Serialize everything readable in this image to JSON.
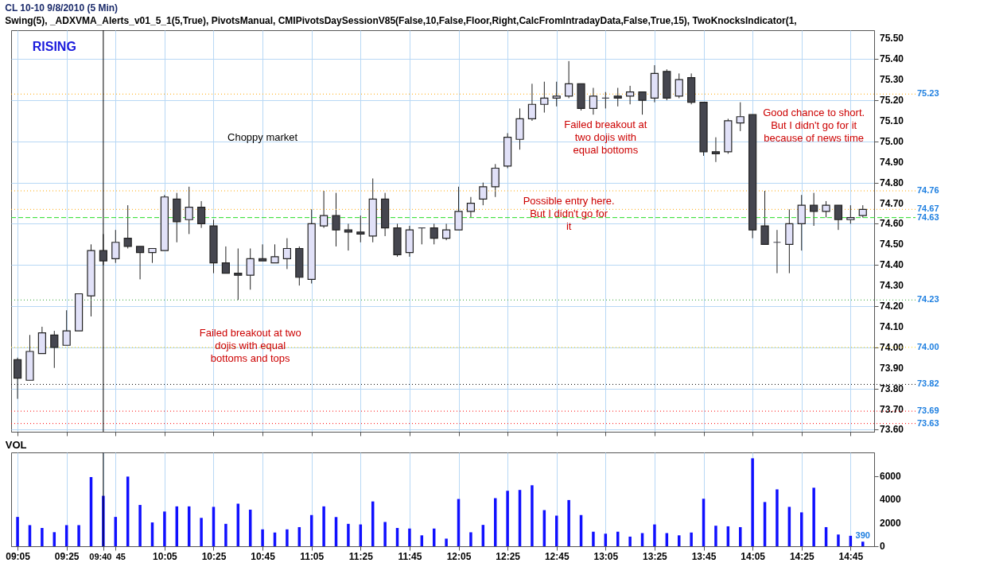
{
  "chart_data": [
    {
      "type": "candlestick",
      "title": "CL 10-10  9/8/2010 (5 Min)",
      "subtitle": "Swing(5),  _ADXVMA_Alerts_v01_5_1(5,True),  PivotsManual,  CMIPivotsDaySessionV85(False,10,False,Floor,Right,CalcFromIntradayData,False,True,15),  TwoKnocksIndicator(1,",
      "x": [
        "2010-09-08T09:05",
        "2010-09-08T09:10",
        "2010-09-08T09:15",
        "2010-09-08T09:20",
        "2010-09-08T09:25",
        "2010-09-08T09:30",
        "2010-09-08T09:35",
        "2010-09-08T09:40",
        "2010-09-08T09:45",
        "2010-09-08T09:50",
        "2010-09-08T09:55",
        "2010-09-08T10:00",
        "2010-09-08T10:05",
        "2010-09-08T10:10",
        "2010-09-08T10:15",
        "2010-09-08T10:20",
        "2010-09-08T10:25",
        "2010-09-08T10:30",
        "2010-09-08T10:35",
        "2010-09-08T10:40",
        "2010-09-08T10:45",
        "2010-09-08T10:50",
        "2010-09-08T10:55",
        "2010-09-08T11:00",
        "2010-09-08T11:05",
        "2010-09-08T11:10",
        "2010-09-08T11:15",
        "2010-09-08T11:20",
        "2010-09-08T11:25",
        "2010-09-08T11:30",
        "2010-09-08T11:35",
        "2010-09-08T11:40",
        "2010-09-08T11:45",
        "2010-09-08T11:50",
        "2010-09-08T11:55",
        "2010-09-08T12:00",
        "2010-09-08T12:05",
        "2010-09-08T12:10",
        "2010-09-08T12:15",
        "2010-09-08T12:20",
        "2010-09-08T12:25",
        "2010-09-08T12:30",
        "2010-09-08T12:35",
        "2010-09-08T12:40",
        "2010-09-08T12:45",
        "2010-09-08T12:50",
        "2010-09-08T12:55",
        "2010-09-08T13:00",
        "2010-09-08T13:05",
        "2010-09-08T13:10",
        "2010-09-08T13:15",
        "2010-09-08T13:20",
        "2010-09-08T13:25",
        "2010-09-08T13:30",
        "2010-09-08T13:35",
        "2010-09-08T13:40",
        "2010-09-08T13:45",
        "2010-09-08T13:50",
        "2010-09-08T13:55",
        "2010-09-08T14:00",
        "2010-09-08T14:05",
        "2010-09-08T14:10",
        "2010-09-08T14:15",
        "2010-09-08T14:20",
        "2010-09-08T14:25",
        "2010-09-08T14:30",
        "2010-09-08T14:35",
        "2010-09-08T14:40",
        "2010-09-08T14:45",
        "2010-09-08T14:50"
      ],
      "ohlc": [
        [
          73.94,
          73.95,
          73.75,
          73.85
        ],
        [
          73.84,
          74.06,
          73.84,
          73.98
        ],
        [
          73.97,
          74.1,
          73.97,
          74.07
        ],
        [
          74.06,
          74.08,
          73.9,
          74.0
        ],
        [
          74.01,
          74.18,
          74.01,
          74.08
        ],
        [
          74.08,
          74.26,
          74.08,
          74.26
        ],
        [
          74.25,
          74.5,
          74.15,
          74.47
        ],
        [
          74.47,
          74.55,
          74.4,
          74.42
        ],
        [
          74.43,
          74.57,
          74.41,
          74.51
        ],
        [
          74.53,
          74.69,
          74.48,
          74.49
        ],
        [
          74.49,
          74.49,
          74.33,
          74.46
        ],
        [
          74.46,
          74.48,
          74.41,
          74.48
        ],
        [
          74.47,
          74.74,
          74.47,
          74.73
        ],
        [
          74.72,
          74.75,
          74.51,
          74.61
        ],
        [
          74.62,
          74.78,
          74.55,
          74.68
        ],
        [
          74.68,
          74.71,
          74.58,
          74.6
        ],
        [
          74.59,
          74.62,
          74.36,
          74.41
        ],
        [
          74.41,
          74.49,
          74.36,
          74.36
        ],
        [
          74.36,
          74.48,
          74.23,
          74.35
        ],
        [
          74.35,
          74.48,
          74.28,
          74.43
        ],
        [
          74.43,
          74.5,
          74.42,
          74.42
        ],
        [
          74.41,
          74.5,
          74.41,
          74.44
        ],
        [
          74.43,
          74.53,
          74.38,
          74.48
        ],
        [
          74.48,
          74.49,
          74.3,
          74.34
        ],
        [
          74.33,
          74.67,
          74.31,
          74.6
        ],
        [
          74.59,
          74.76,
          74.58,
          74.64
        ],
        [
          74.64,
          74.75,
          74.49,
          74.57
        ],
        [
          74.57,
          74.6,
          74.47,
          74.56
        ],
        [
          74.56,
          74.64,
          74.51,
          74.55
        ],
        [
          74.54,
          74.82,
          74.51,
          74.72
        ],
        [
          74.72,
          74.75,
          74.54,
          74.58
        ],
        [
          74.58,
          74.6,
          74.44,
          74.45
        ],
        [
          74.46,
          74.59,
          74.44,
          74.57
        ],
        [
          74.58,
          74.58,
          74.5,
          74.58
        ],
        [
          74.58,
          74.6,
          74.5,
          74.53
        ],
        [
          74.53,
          74.6,
          74.52,
          74.57
        ],
        [
          74.57,
          74.78,
          74.57,
          74.66
        ],
        [
          74.66,
          74.73,
          74.63,
          74.7
        ],
        [
          74.72,
          74.8,
          74.69,
          74.78
        ],
        [
          74.78,
          74.89,
          74.73,
          74.87
        ],
        [
          74.88,
          75.04,
          74.87,
          75.02
        ],
        [
          75.01,
          75.16,
          74.96,
          75.11
        ],
        [
          75.11,
          75.28,
          75.1,
          75.18
        ],
        [
          75.18,
          75.29,
          75.14,
          75.21
        ],
        [
          75.21,
          75.29,
          75.17,
          75.22
        ],
        [
          75.22,
          75.39,
          75.21,
          75.28
        ],
        [
          75.28,
          75.28,
          75.15,
          75.16
        ],
        [
          75.16,
          75.26,
          75.13,
          75.22
        ],
        [
          75.21,
          75.24,
          75.16,
          75.21
        ],
        [
          75.22,
          75.26,
          75.17,
          75.21
        ],
        [
          75.22,
          75.27,
          75.18,
          75.24
        ],
        [
          75.24,
          75.24,
          75.13,
          75.2
        ],
        [
          75.21,
          75.37,
          75.19,
          75.33
        ],
        [
          75.34,
          75.35,
          75.2,
          75.21
        ],
        [
          75.22,
          75.33,
          75.21,
          75.3
        ],
        [
          75.31,
          75.33,
          75.18,
          75.19
        ],
        [
          75.19,
          75.19,
          74.93,
          74.95
        ],
        [
          74.95,
          75.02,
          74.9,
          74.94
        ],
        [
          74.95,
          75.11,
          74.94,
          75.1
        ],
        [
          75.09,
          75.19,
          75.05,
          75.12
        ],
        [
          75.13,
          75.13,
          74.53,
          74.57
        ],
        [
          74.59,
          74.76,
          74.5,
          74.5
        ],
        [
          74.51,
          74.57,
          74.36,
          74.51
        ],
        [
          74.5,
          74.67,
          74.36,
          74.6
        ],
        [
          74.6,
          74.74,
          74.47,
          74.69
        ],
        [
          74.69,
          74.75,
          74.59,
          74.66
        ],
        [
          74.66,
          74.71,
          74.63,
          74.69
        ],
        [
          74.69,
          74.69,
          74.57,
          74.62
        ],
        [
          74.62,
          74.69,
          74.6,
          74.63
        ],
        [
          74.64,
          74.69,
          74.63,
          74.67
        ]
      ],
      "colors": [
        "#45464f",
        "#e1e1f8",
        "#e1e1f8",
        "#45464f",
        "#e1e1f8",
        "#e1e1f8",
        "#e1e1f8",
        "#45464f",
        "#e1e1f8",
        "#45464f",
        "#45464f",
        "#e1e1f8",
        "#e1e1f8",
        "#45464f",
        "#e1e1f8",
        "#45464f",
        "#45464f",
        "#45464f",
        "#45464f",
        "#e1e1f8",
        "#45464f",
        "#e1e1f8",
        "#e1e1f8",
        "#45464f",
        "#e1e1f8",
        "#e1e1f8",
        "#45464f",
        "#45464f",
        "#45464f",
        "#e1e1f8",
        "#45464f",
        "#45464f",
        "#e1e1f8",
        "#45464f",
        "#45464f",
        "#e1e1f8",
        "#e1e1f8",
        "#e1e1f8",
        "#e1e1f8",
        "#e1e1f8",
        "#e1e1f8",
        "#e1e1f8",
        "#e1e1f8",
        "#e1e1f8",
        "#e1e1f8",
        "#e1e1f8",
        "#45464f",
        "#e1e1f8",
        "#45464f",
        "#45464f",
        "#e1e1f8",
        "#45464f",
        "#e1e1f8",
        "#45464f",
        "#e1e1f8",
        "#45464f",
        "#45464f",
        "#45464f",
        "#e1e1f8",
        "#e1e1f8",
        "#45464f",
        "#45464f",
        "#45464f",
        "#e1e1f8",
        "#e1e1f8",
        "#45464f",
        "#e1e1f8",
        "#45464f",
        "#e1e1f8",
        "#e1e1f8"
      ],
      "xlim": [
        "2010-09-08T09:04",
        "2010-09-08T14:53"
      ],
      "xticks": [
        {
          "value": "2010-09-08T09:05",
          "label": null
        },
        {
          "value": "2010-09-08T09:25",
          "label": null
        },
        {
          "value": "2010-09-08T09:45",
          "label": null
        },
        {
          "value": "2010-09-08T10:05",
          "label": null
        },
        {
          "value": "2010-09-08T10:25",
          "label": null
        },
        {
          "value": "2010-09-08T10:45",
          "label": null
        },
        {
          "value": "2010-09-08T11:05",
          "label": null
        },
        {
          "value": "2010-09-08T11:25",
          "label": null
        },
        {
          "value": "2010-09-08T11:45",
          "label": null
        },
        {
          "value": "2010-09-08T12:05",
          "label": null
        },
        {
          "value": "2010-09-08T12:25",
          "label": null
        },
        {
          "value": "2010-09-08T12:45",
          "label": null
        },
        {
          "value": "2010-09-08T13:05",
          "label": null
        },
        {
          "value": "2010-09-08T13:25",
          "label": null
        },
        {
          "value": "2010-09-08T13:45",
          "label": null
        },
        {
          "value": "2010-09-08T14:05",
          "label": null
        },
        {
          "value": "2010-09-08T14:25",
          "label": null
        },
        {
          "value": "2010-09-08T14:45",
          "label": null
        }
      ],
      "ylim": [
        73.59,
        75.54
      ],
      "yticks": [
        {
          "value": 73.6,
          "label": "73.60"
        },
        {
          "value": 73.7,
          "label": "73.70"
        },
        {
          "value": 73.8,
          "label": "73.80"
        },
        {
          "value": 73.9,
          "label": "73.90"
        },
        {
          "value": 74.0,
          "label": "74.00"
        },
        {
          "value": 74.1,
          "label": "74.10"
        },
        {
          "value": 74.2,
          "label": "74.20"
        },
        {
          "value": 74.3,
          "label": "74.30"
        },
        {
          "value": 74.4,
          "label": "74.40"
        },
        {
          "value": 74.5,
          "label": "74.50"
        },
        {
          "value": 74.6,
          "label": "74.60"
        },
        {
          "value": 74.7,
          "label": "74.70"
        },
        {
          "value": 74.8,
          "label": "74.80"
        },
        {
          "value": 74.9,
          "label": "74.90"
        },
        {
          "value": 75.0,
          "label": "75.00"
        },
        {
          "value": 75.1,
          "label": "75.10"
        },
        {
          "value": 75.2,
          "label": "75.20"
        },
        {
          "value": 75.3,
          "label": "75.30"
        },
        {
          "value": 75.4,
          "label": "75.40"
        },
        {
          "value": 75.5,
          "label": "75.50"
        }
      ],
      "grid": true,
      "tick_labels": "y",
      "ref_lines": [
        {
          "axis": "y",
          "value": 75.23,
          "label": "75.23",
          "color": "#ffa500",
          "line_style": "dotted"
        },
        {
          "axis": "y",
          "value": 74.76,
          "label": "74.76",
          "color": "#ffa500",
          "line_style": "dotted"
        },
        {
          "axis": "y",
          "value": 74.67,
          "label": "74.67",
          "color": "#ffa500",
          "line_style": "dotted"
        },
        {
          "axis": "y",
          "value": 74.63,
          "label": "74.63",
          "color": "#22dd22",
          "line_style": "dashed"
        },
        {
          "axis": "y",
          "value": 74.23,
          "label": "74.23",
          "color": "#2ca02c",
          "line_style": "dotted"
        },
        {
          "axis": "y",
          "value": 74.0,
          "label": "74.00",
          "color": "#ffd700",
          "line_style": "dotted"
        },
        {
          "axis": "y",
          "value": 73.82,
          "label": "73.82",
          "color": "#000000",
          "line_style": "dotted"
        },
        {
          "axis": "y",
          "value": 73.69,
          "label": "73.69",
          "color": "#ff0000",
          "line_style": "dotted"
        },
        {
          "axis": "y",
          "value": 73.63,
          "label": "73.63",
          "color": "#ff0000",
          "line_style": "dotted"
        },
        {
          "axis": "x",
          "value": "2010-09-08T09:40",
          "color": "#000000",
          "line_style": "solid"
        }
      ],
      "annotations": [
        "RISING",
        "Choppy market",
        "Failed breakout at two dojis with equal bottoms and tops",
        "Possible entry here. But I didn't go for it",
        "Failed breakout at two dojis with equal bottoms",
        "Good chance to short. But I didn't go for it because of news time"
      ]
    },
    {
      "type": "bar",
      "title": "VOL",
      "x": [
        "2010-09-08T09:05",
        "2010-09-08T09:10",
        "2010-09-08T09:15",
        "2010-09-08T09:20",
        "2010-09-08T09:25",
        "2010-09-08T09:30",
        "2010-09-08T09:35",
        "2010-09-08T09:40",
        "2010-09-08T09:45",
        "2010-09-08T09:50",
        "2010-09-08T09:55",
        "2010-09-08T10:00",
        "2010-09-08T10:05",
        "2010-09-08T10:10",
        "2010-09-08T10:15",
        "2010-09-08T10:20",
        "2010-09-08T10:25",
        "2010-09-08T10:30",
        "2010-09-08T10:35",
        "2010-09-08T10:40",
        "2010-09-08T10:45",
        "2010-09-08T10:50",
        "2010-09-08T10:55",
        "2010-09-08T11:00",
        "2010-09-08T11:05",
        "2010-09-08T11:10",
        "2010-09-08T11:15",
        "2010-09-08T11:20",
        "2010-09-08T11:25",
        "2010-09-08T11:30",
        "2010-09-08T11:35",
        "2010-09-08T11:40",
        "2010-09-08T11:45",
        "2010-09-08T11:50",
        "2010-09-08T11:55",
        "2010-09-08T12:00",
        "2010-09-08T12:05",
        "2010-09-08T12:10",
        "2010-09-08T12:15",
        "2010-09-08T12:20",
        "2010-09-08T12:25",
        "2010-09-08T12:30",
        "2010-09-08T12:35",
        "2010-09-08T12:40",
        "2010-09-08T12:45",
        "2010-09-08T12:50",
        "2010-09-08T12:55",
        "2010-09-08T13:00",
        "2010-09-08T13:05",
        "2010-09-08T13:10",
        "2010-09-08T13:15",
        "2010-09-08T13:20",
        "2010-09-08T13:25",
        "2010-09-08T13:30",
        "2010-09-08T13:35",
        "2010-09-08T13:40",
        "2010-09-08T13:45",
        "2010-09-08T13:50",
        "2010-09-08T13:55",
        "2010-09-08T14:00",
        "2010-09-08T14:05",
        "2010-09-08T14:10",
        "2010-09-08T14:15",
        "2010-09-08T14:20",
        "2010-09-08T14:25",
        "2010-09-08T14:30",
        "2010-09-08T14:35",
        "2010-09-08T14:40",
        "2010-09-08T14:45",
        "2010-09-08T14:50"
      ],
      "values": [
        2500,
        1800,
        1560,
        1200,
        1800,
        1800,
        5900,
        4300,
        2500,
        5940,
        3520,
        2030,
        2960,
        3400,
        3400,
        2420,
        3360,
        1910,
        3630,
        3120,
        1440,
        1170,
        1440,
        1630,
        2660,
        3400,
        2490,
        1910,
        1860,
        3820,
        2070,
        1560,
        1510,
        930,
        1510,
        650,
        4030,
        1190,
        1820,
        4100,
        4730,
        4800,
        5200,
        3080,
        2610,
        3940,
        2660,
        1240,
        1070,
        1240,
        820,
        1120,
        1860,
        1120,
        930,
        1170,
        4050,
        1750,
        1700,
        1630,
        7500,
        3770,
        4850,
        3360,
        2890,
        4990,
        1630,
        1000,
        890,
        390
      ],
      "value_labels": [
        null,
        null,
        null,
        null,
        null,
        null,
        null,
        null,
        null,
        null,
        null,
        null,
        null,
        null,
        null,
        null,
        null,
        null,
        null,
        null,
        null,
        null,
        null,
        null,
        null,
        null,
        null,
        null,
        null,
        null,
        null,
        null,
        null,
        null,
        null,
        null,
        null,
        null,
        null,
        null,
        null,
        null,
        null,
        null,
        null,
        null,
        null,
        null,
        null,
        null,
        null,
        null,
        null,
        null,
        null,
        null,
        null,
        null,
        null,
        null,
        null,
        null,
        null,
        null,
        null,
        null,
        null,
        null,
        null,
        "390"
      ],
      "color": "#1010ff",
      "xlim": [
        "2010-09-08T09:04",
        "2010-09-08T14:53"
      ],
      "xticks": [
        {
          "value": "2010-09-08T09:05",
          "label": "09:05"
        },
        {
          "value": "2010-09-08T09:25",
          "label": "09:25"
        },
        {
          "value": "2010-09-08T09:40",
          "label": "09:40"
        },
        {
          "value": "2010-09-08T09:45",
          "label": "45"
        },
        {
          "value": "2010-09-08T10:05",
          "label": "10:05"
        },
        {
          "value": "2010-09-08T10:25",
          "label": "10:25"
        },
        {
          "value": "2010-09-08T10:45",
          "label": "10:45"
        },
        {
          "value": "2010-09-08T11:05",
          "label": "11:05"
        },
        {
          "value": "2010-09-08T11:25",
          "label": "11:25"
        },
        {
          "value": "2010-09-08T11:45",
          "label": "11:45"
        },
        {
          "value": "2010-09-08T12:05",
          "label": "12:05"
        },
        {
          "value": "2010-09-08T12:25",
          "label": "12:25"
        },
        {
          "value": "2010-09-08T12:45",
          "label": "12:45"
        },
        {
          "value": "2010-09-08T13:05",
          "label": "13:05"
        },
        {
          "value": "2010-09-08T13:25",
          "label": "13:25"
        },
        {
          "value": "2010-09-08T13:45",
          "label": "13:45"
        },
        {
          "value": "2010-09-08T14:05",
          "label": "14:05"
        },
        {
          "value": "2010-09-08T14:25",
          "label": "14:25"
        },
        {
          "value": "2010-09-08T14:45",
          "label": "14:45"
        }
      ],
      "ylim": [
        0,
        8000
      ],
      "yticks": [
        0,
        2000,
        4000,
        6000
      ],
      "grid": "x",
      "ref_lines": [
        {
          "axis": "x",
          "value": "2010-09-08T09:40",
          "color": "#000000",
          "line_style": "solid"
        }
      ]
    }
  ]
}
